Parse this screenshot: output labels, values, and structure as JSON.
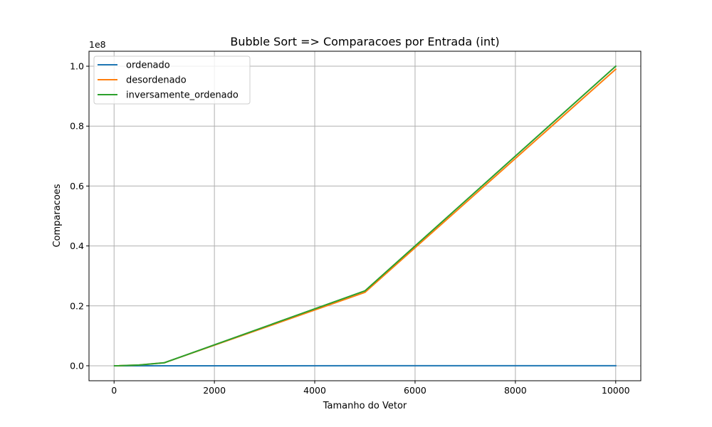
{
  "chart_data": {
    "type": "line",
    "title": "Bubble Sort => Comparacoes por Entrada (int)",
    "xlabel": "Tamanho do Vetor",
    "ylabel": "Comparacoes",
    "y_offset_label": "1e8",
    "y_scale": 100000000,
    "xlim": [
      -500,
      10500
    ],
    "ylim": [
      -5000000,
      105000000
    ],
    "x_ticks": [
      0,
      2000,
      4000,
      6000,
      8000,
      10000
    ],
    "x_tick_labels": [
      "0",
      "2000",
      "4000",
      "6000",
      "8000",
      "10000"
    ],
    "y_ticks": [
      0,
      20000000,
      40000000,
      60000000,
      80000000,
      100000000
    ],
    "y_tick_labels": [
      "0.0",
      "0.2",
      "0.4",
      "0.6",
      "0.8",
      "1.0"
    ],
    "grid": true,
    "legend_position": "top-left",
    "x": [
      10,
      100,
      500,
      1000,
      5000,
      10000
    ],
    "series": [
      {
        "name": "ordenado",
        "color": "#1f77b4",
        "values": [
          9,
          99,
          499,
          999,
          4999,
          9999
        ]
      },
      {
        "name": "desordenado",
        "color": "#ff7f0e",
        "values": [
          90,
          9900,
          249500,
          990000,
          24500000,
          99000000
        ]
      },
      {
        "name": "inversamente_ordenado",
        "color": "#2ca02c",
        "values": [
          100,
          10000,
          250000,
          1000000,
          25000000,
          100000000
        ]
      }
    ]
  }
}
